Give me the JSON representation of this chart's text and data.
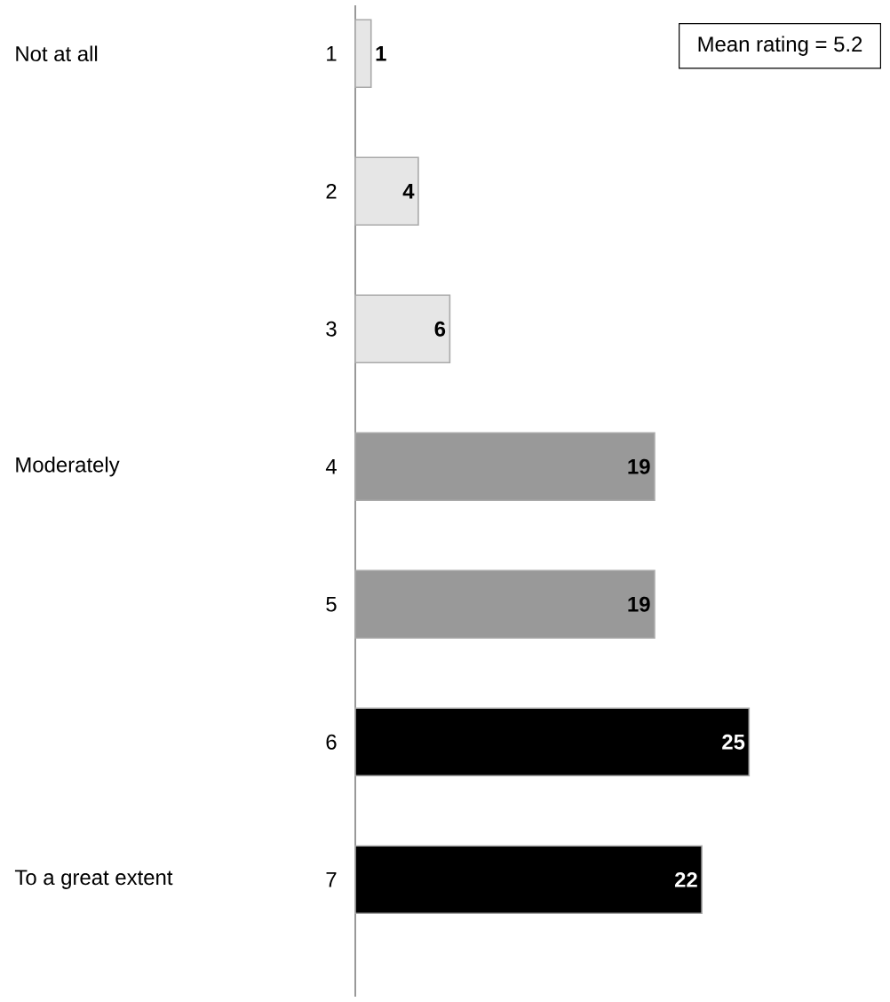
{
  "chart_data": {
    "type": "bar",
    "orientation": "horizontal",
    "categories": [
      "1",
      "2",
      "3",
      "4",
      "5",
      "6",
      "7"
    ],
    "values": [
      1,
      4,
      6,
      19,
      19,
      25,
      22
    ],
    "colors": [
      "#e6e6e6",
      "#e6e6e6",
      "#e6e6e6",
      "#999999",
      "#999999",
      "#000000",
      "#000000"
    ],
    "tick_labels": "y",
    "data_labels": true,
    "grid": false,
    "annotations": [
      "Mean rating = 5.2",
      "Not at all",
      "Moderately",
      "To a great extent"
    ]
  }
}
